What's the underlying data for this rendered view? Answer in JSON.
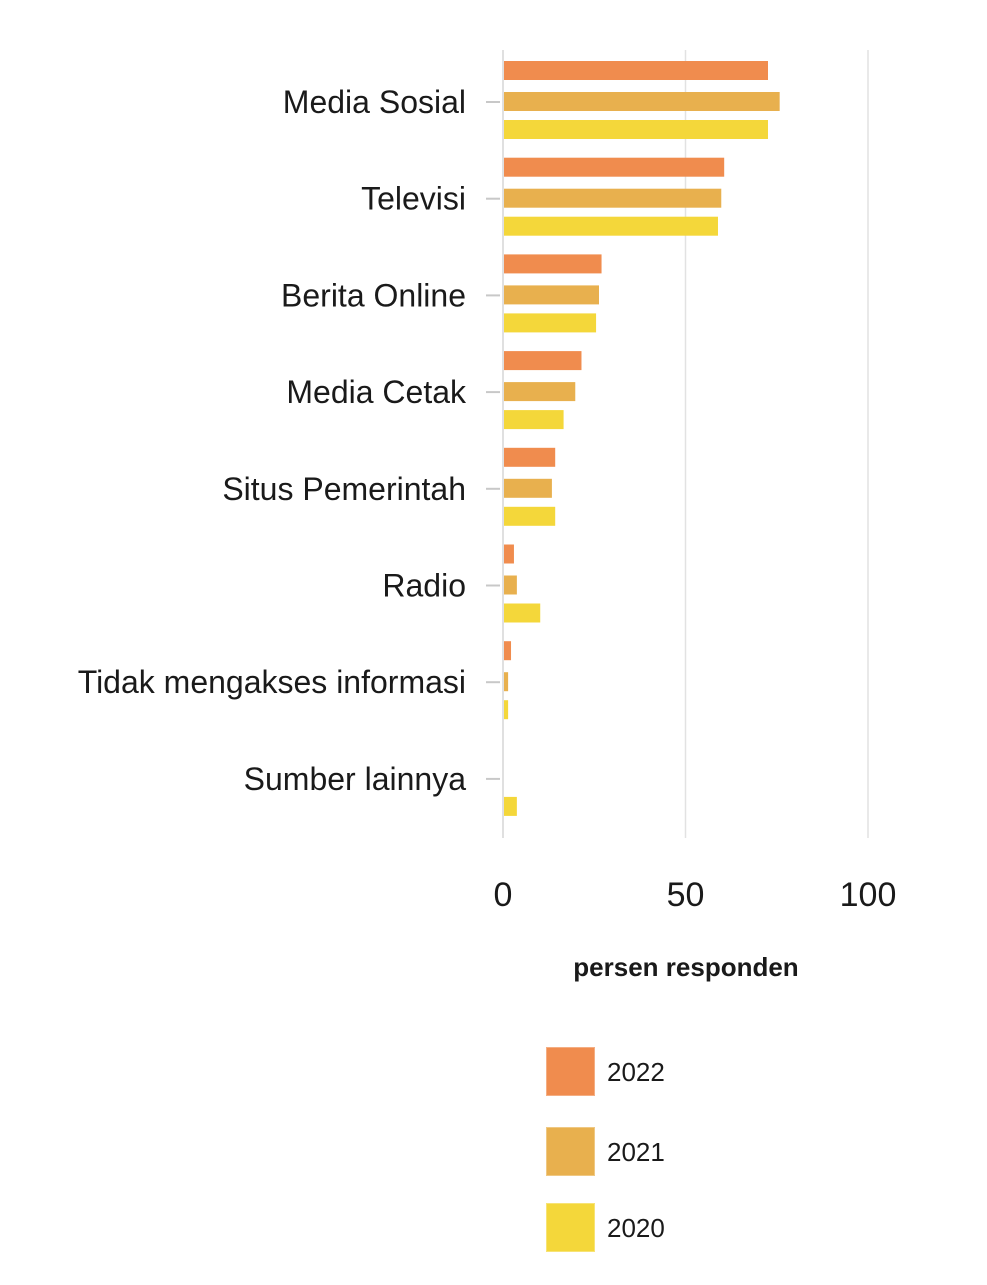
{
  "chart_data": {
    "type": "bar",
    "orientation": "horizontal",
    "categories": [
      "Media Sosial",
      "Televisi",
      "Berita Online",
      "Media Cetak",
      "Situs Pemerintah",
      "Radio",
      "Tidak mengakses informasi",
      "Sumber lainnya"
    ],
    "series": [
      {
        "name": "2022",
        "color": "#F08C4E",
        "values": [
          72.6,
          60.6,
          27.0,
          21.5,
          14.3,
          3.0,
          2.2,
          0.0
        ]
      },
      {
        "name": "2021",
        "color": "#E8B04E",
        "values": [
          75.8,
          59.8,
          26.3,
          19.8,
          13.4,
          3.8,
          1.4,
          0.0
        ]
      },
      {
        "name": "2020",
        "color": "#F4D73A",
        "values": [
          72.6,
          58.9,
          25.5,
          16.6,
          14.3,
          10.2,
          1.4,
          3.8
        ]
      }
    ],
    "xlim": [
      0,
      100
    ],
    "xticks": [
      "0",
      "50",
      "100"
    ],
    "xlabel": "persen responden",
    "title": "",
    "grid": true,
    "legend_position": "bottom-center"
  }
}
